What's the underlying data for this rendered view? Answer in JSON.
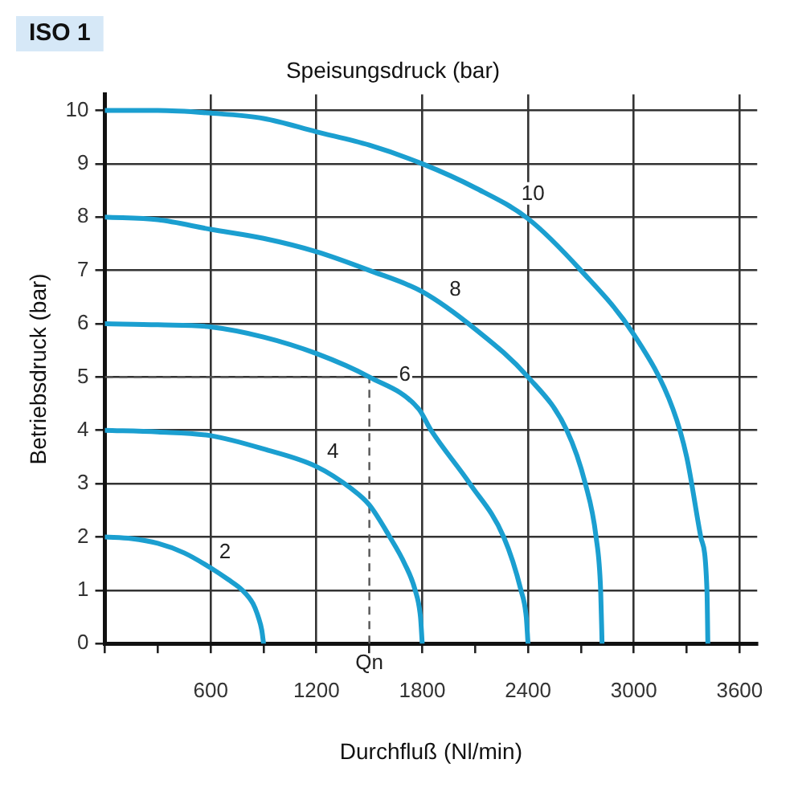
{
  "chart_data": {
    "type": "line",
    "title": "Speisungsdruck (bar)",
    "xlabel": "Durchfluß (Nl/min)",
    "ylabel": "Betriebsdruck (bar)",
    "annotations": [
      "ISO 1"
    ],
    "xlim": [
      0,
      3700
    ],
    "ylim": [
      0,
      10.3
    ],
    "xticks": [
      {
        "value": 0,
        "label": null
      },
      {
        "value": 300,
        "label": null
      },
      600,
      {
        "value": 900,
        "label": null
      },
      1200,
      {
        "value": 1500,
        "label": null
      },
      1800,
      {
        "value": 2100,
        "label": null
      },
      2400,
      {
        "value": 2700,
        "label": null
      },
      3000,
      {
        "value": 3300,
        "label": null
      },
      3600
    ],
    "yticks": [
      0,
      1,
      2,
      3,
      4,
      5,
      6,
      7,
      8,
      9,
      10
    ],
    "grid": true,
    "legend": false,
    "marker": "none",
    "line_style": "solid",
    "ref_lines": [
      {
        "axis": "x",
        "value": 1500,
        "label": "Qn",
        "line_style": "dashed",
        "color": "#555555"
      },
      {
        "axis": "y",
        "value": 5,
        "line_style": "dashed",
        "color": "#555555"
      }
    ],
    "series": [
      {
        "name": "2",
        "color": "#1b9fd0",
        "x": [
          0,
          150,
          300,
          450,
          600,
          700,
          780,
          840,
          870,
          890,
          900
        ],
        "values": [
          2,
          1.97,
          1.88,
          1.7,
          1.42,
          1.2,
          1.0,
          0.75,
          0.5,
          0.25,
          0
        ]
      },
      {
        "name": "4",
        "color": "#1b9fd0",
        "x": [
          0,
          300,
          600,
          900,
          1200,
          1400,
          1500,
          1616,
          1700,
          1760,
          1790,
          1800
        ],
        "values": [
          4,
          3.97,
          3.9,
          3.65,
          3.32,
          2.9,
          2.6,
          2.0,
          1.5,
          1.0,
          0.5,
          0
        ]
      },
      {
        "name": "6",
        "color": "#1b9fd0",
        "x": [
          0,
          300,
          600,
          900,
          1200,
          1500,
          1780,
          1850,
          2070,
          2262,
          2360,
          2390,
          2400
        ],
        "values": [
          6,
          5.98,
          5.94,
          5.75,
          5.44,
          5.0,
          4.4,
          4.0,
          3.0,
          2.0,
          1.0,
          0.5,
          0
        ]
      },
      {
        "name": "8",
        "color": "#1b9fd0",
        "x": [
          0,
          300,
          600,
          900,
          1200,
          1500,
          1800,
          2100,
          2400,
          2620,
          2725,
          2786,
          2812,
          2820
        ],
        "values": [
          8,
          7.95,
          7.77,
          7.6,
          7.35,
          7.0,
          6.6,
          5.9,
          5.0,
          4.0,
          3.0,
          2.0,
          1.0,
          0
        ]
      },
      {
        "name": "10",
        "color": "#1b9fd0",
        "x": [
          0,
          300,
          600,
          900,
          1200,
          1500,
          1800,
          2100,
          2400,
          2700,
          3000,
          3222,
          3300,
          3380,
          3415,
          3420
        ],
        "values": [
          10,
          10,
          9.95,
          9.85,
          9.6,
          9.35,
          9.0,
          8.55,
          7.97,
          7.0,
          5.8,
          4.4,
          3.5,
          2.0,
          1.0,
          0
        ]
      }
    ]
  }
}
